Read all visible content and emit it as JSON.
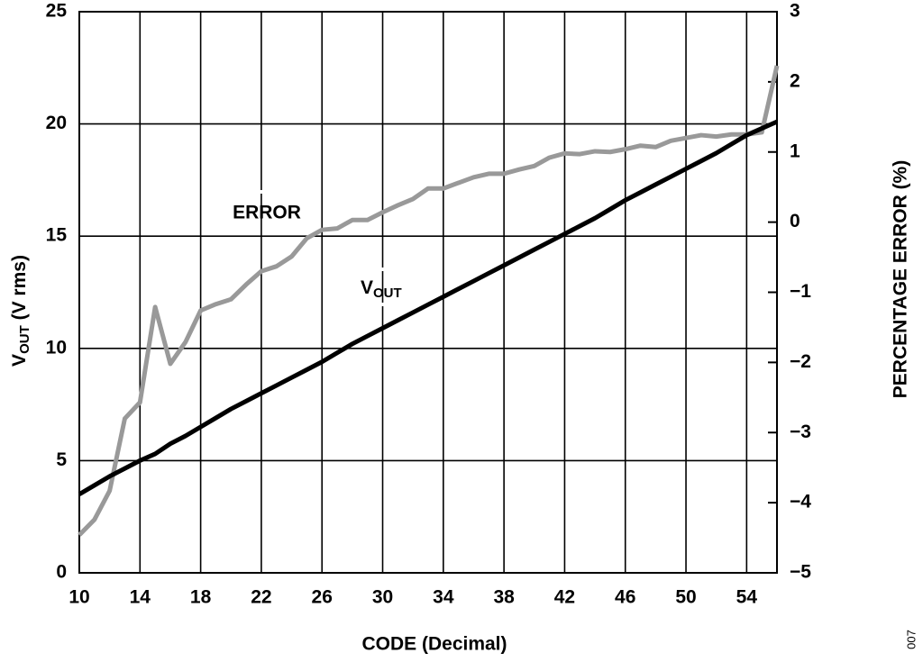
{
  "chart_data": {
    "type": "line",
    "xlabel": "CODE (Decimal)",
    "ylabel": {
      "main": "V",
      "sub": "OUT",
      "rest": " (V rms)"
    },
    "y2label": "PERCENTAGE ERROR (%)",
    "figure_id": "007",
    "x": [
      10,
      11,
      12,
      13,
      14,
      15,
      16,
      17,
      18,
      19,
      20,
      21,
      22,
      23,
      24,
      25,
      26,
      27,
      28,
      29,
      30,
      31,
      32,
      33,
      34,
      35,
      36,
      37,
      38,
      39,
      40,
      41,
      42,
      43,
      44,
      45,
      46,
      47,
      48,
      49,
      50,
      51,
      52,
      53,
      54,
      55,
      56
    ],
    "series": [
      {
        "name": "V",
        "name_sub": "OUT",
        "color": "#000000",
        "axis": "y",
        "values": [
          3.5,
          3.9,
          4.3,
          4.65,
          5.0,
          5.3,
          5.75,
          6.1,
          6.5,
          6.9,
          7.3,
          7.65,
          8.0,
          8.35,
          8.7,
          9.05,
          9.4,
          9.8,
          10.2,
          10.55,
          10.9,
          11.25,
          11.6,
          11.95,
          12.3,
          12.65,
          13.0,
          13.35,
          13.7,
          14.05,
          14.4,
          14.75,
          15.1,
          15.45,
          15.8,
          16.2,
          16.6,
          16.95,
          17.3,
          17.65,
          18.0,
          18.35,
          18.7,
          19.1,
          19.5,
          19.8,
          20.1
        ]
      },
      {
        "name": "ERROR",
        "color": "#999999",
        "axis": "y2",
        "values": [
          -4.46,
          -4.24,
          -3.83,
          -2.8,
          -2.57,
          -1.21,
          -2.02,
          -1.71,
          -1.26,
          -1.17,
          -1.1,
          -0.89,
          -0.7,
          -0.63,
          -0.49,
          -0.23,
          -0.11,
          -0.09,
          0.03,
          0.03,
          0.14,
          0.24,
          0.33,
          0.48,
          0.48,
          0.56,
          0.64,
          0.69,
          0.69,
          0.75,
          0.8,
          0.92,
          0.98,
          0.97,
          1.01,
          1.0,
          1.04,
          1.09,
          1.07,
          1.16,
          1.2,
          1.24,
          1.22,
          1.25,
          1.25,
          1.28,
          2.23
        ]
      }
    ],
    "xlim": [
      10,
      56
    ],
    "xticks": [
      10,
      14,
      18,
      22,
      26,
      30,
      34,
      38,
      42,
      46,
      50,
      54
    ],
    "ylim": [
      0,
      25
    ],
    "yticks": [
      0,
      5,
      10,
      15,
      20,
      25
    ],
    "y2lim": [
      -5,
      3
    ],
    "y2ticks": [
      {
        "value": -5,
        "label": "−5"
      },
      {
        "value": -4,
        "label": "−4"
      },
      {
        "value": -3,
        "label": "−3"
      },
      {
        "value": -2,
        "label": "−2"
      },
      {
        "value": -1,
        "label": "−1"
      },
      0,
      1,
      2,
      3
    ],
    "grid": true
  }
}
